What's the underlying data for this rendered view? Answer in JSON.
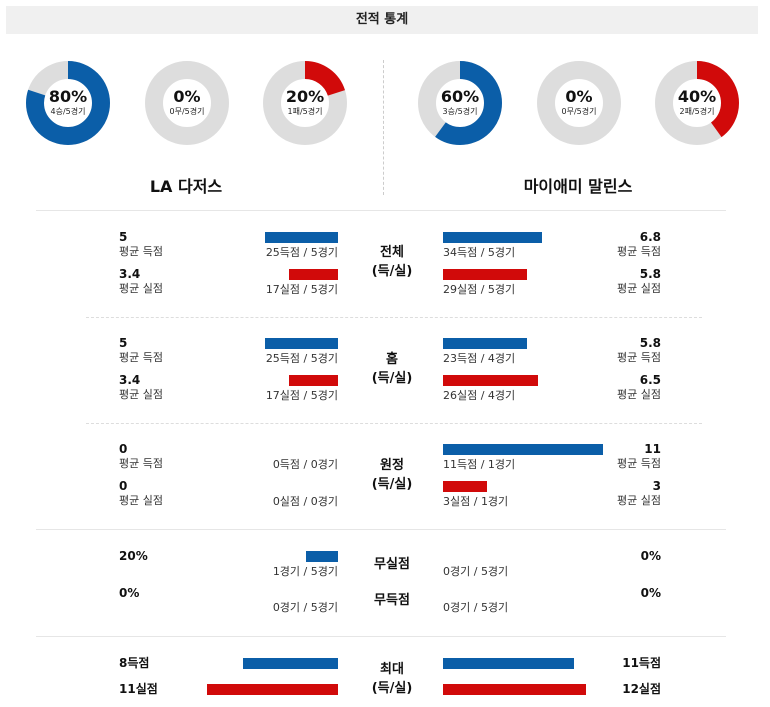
{
  "title": "전적 통계",
  "colors": {
    "blue": "#0b5ea8",
    "red": "#d10a0a",
    "track": "#dddddd"
  },
  "teams": {
    "left": {
      "name": "LA 다저스",
      "donuts": [
        {
          "pct": "80%",
          "sub": "4승/5경기",
          "value": 0.8,
          "color": "blue"
        },
        {
          "pct": "0%",
          "sub": "0무/5경기",
          "value": 0,
          "color": "blue"
        },
        {
          "pct": "20%",
          "sub": "1패/5경기",
          "value": 0.2,
          "color": "red"
        }
      ]
    },
    "right": {
      "name": "마이애미 말린스",
      "donuts": [
        {
          "pct": "60%",
          "sub": "3승/5경기",
          "value": 0.6,
          "color": "blue"
        },
        {
          "pct": "0%",
          "sub": "0무/5경기",
          "value": 0,
          "color": "blue"
        },
        {
          "pct": "40%",
          "sub": "2패/5경기",
          "value": 0.4,
          "color": "red"
        }
      ]
    }
  },
  "sections": {
    "overall": {
      "cat1": "전체",
      "cat2": "(득/실)",
      "left": {
        "scored": "5",
        "scored_label": "평균 득점",
        "scored_count": "25득점 / 5경기",
        "allowed": "3.4",
        "allowed_label": "평균 실점",
        "allowed_count": "17실점 / 5경기"
      },
      "right": {
        "scored": "6.8",
        "scored_label": "평균 득점",
        "scored_count": "34득점 / 5경기",
        "allowed": "5.8",
        "allowed_label": "평균 실점",
        "allowed_count": "29실점 / 5경기"
      }
    },
    "home": {
      "cat1": "홈",
      "cat2": "(득/실)",
      "left": {
        "scored": "5",
        "scored_label": "평균 득점",
        "scored_count": "25득점 / 5경기",
        "allowed": "3.4",
        "allowed_label": "평균 실점",
        "allowed_count": "17실점 / 5경기"
      },
      "right": {
        "scored": "5.8",
        "scored_label": "평균 득점",
        "scored_count": "23득점 / 4경기",
        "allowed": "6.5",
        "allowed_label": "평균 실점",
        "allowed_count": "26실점 / 4경기"
      }
    },
    "away": {
      "cat1": "원정",
      "cat2": "(득/실)",
      "left": {
        "scored": "0",
        "scored_label": "평균 득점",
        "scored_count": "0득점 / 0경기",
        "allowed": "0",
        "allowed_label": "평균 실점",
        "allowed_count": "0실점 / 0경기"
      },
      "right": {
        "scored": "11",
        "scored_label": "평균 득점",
        "scored_count": "11득점 / 1경기",
        "allowed": "3",
        "allowed_label": "평균 실점",
        "allowed_count": "3실점 / 1경기"
      }
    },
    "shutout": {
      "cat_a": "무실점",
      "cat_b": "무득점",
      "left": {
        "a": "20%",
        "a_count": "1경기 / 5경기",
        "a_value": 0.2,
        "b": "0%",
        "b_count": "0경기 / 5경기",
        "b_value": 0
      },
      "right": {
        "a": "0%",
        "a_count": "0경기 / 5경기",
        "a_value": 0,
        "b": "0%",
        "b_count": "0경기 / 5경기",
        "b_value": 0
      }
    },
    "max": {
      "cat1": "최대",
      "cat2": "(득/실)",
      "left": {
        "scored": "8득점",
        "allowed": "11실점"
      },
      "right": {
        "scored": "11득점",
        "allowed": "12실점"
      }
    }
  },
  "bar_values": {
    "overall": {
      "left_scored": 5,
      "left_allowed": 3.4,
      "right_scored": 6.8,
      "right_allowed": 5.8
    },
    "home": {
      "left_scored": 5,
      "left_allowed": 3.4,
      "right_scored": 5.8,
      "right_allowed": 6.5
    },
    "away": {
      "left_scored": 0,
      "left_allowed": 0,
      "right_scored": 11,
      "right_allowed": 3
    },
    "max": {
      "left_scored": 8,
      "left_allowed": 11,
      "right_scored": 11,
      "right_allowed": 12
    }
  }
}
